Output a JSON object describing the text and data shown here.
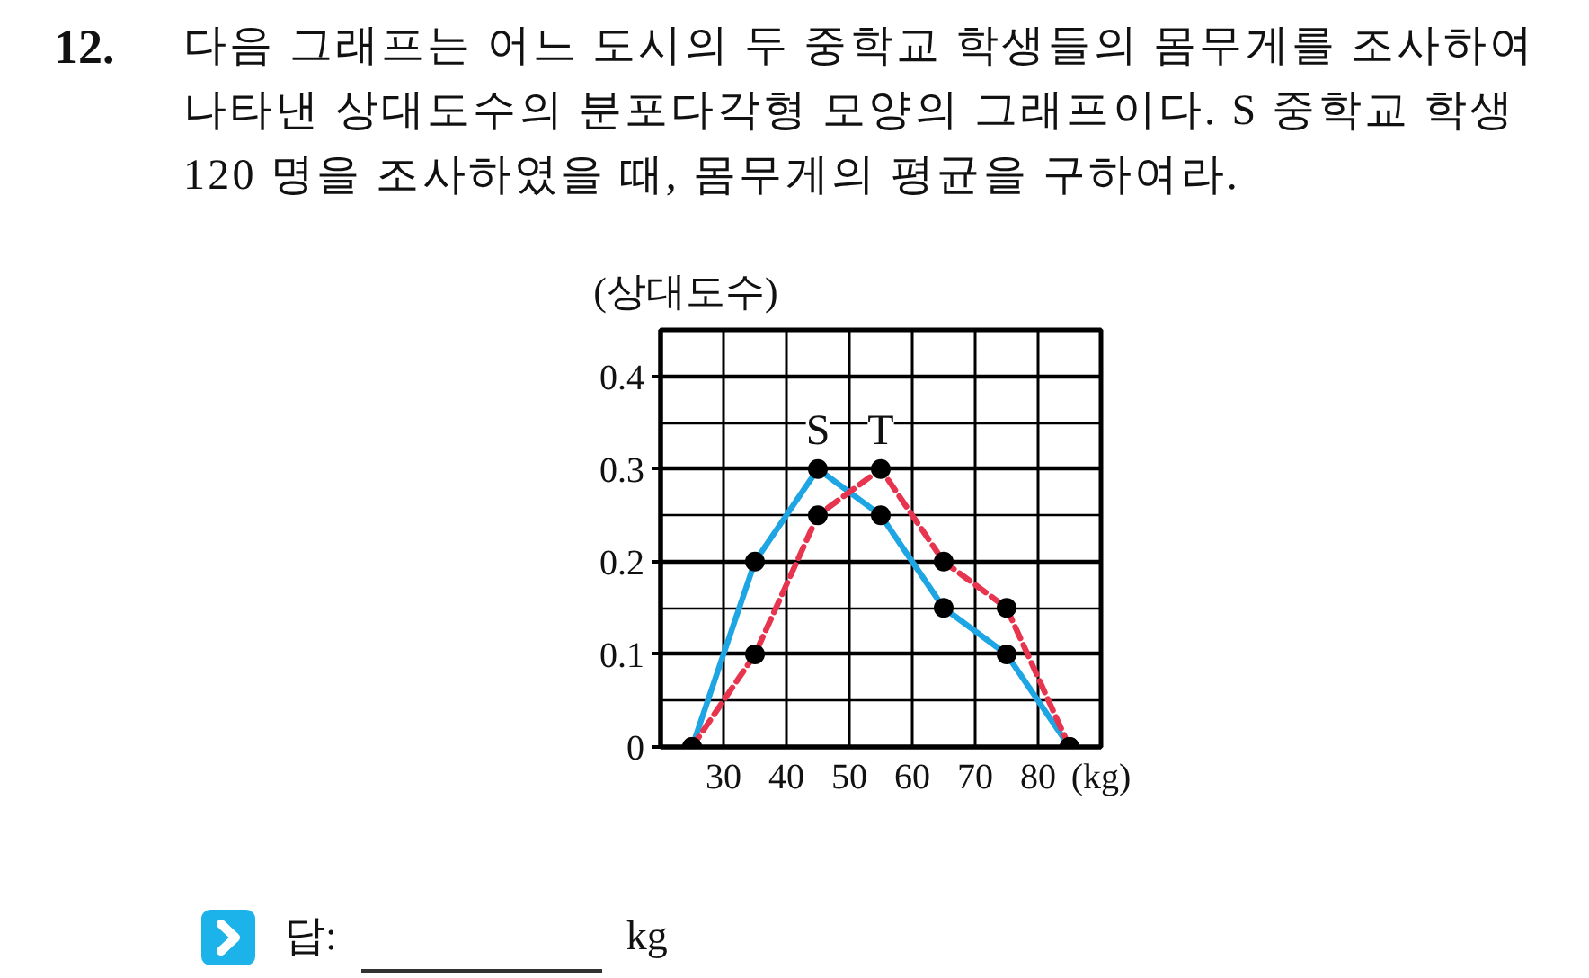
{
  "chart_data": {
    "type": "line",
    "title": "12.",
    "subtitle": "다음 그래프는 어느 도시의 두 중학교 학생들의 몸무게를 조사하여 나타낸 상대도수의 분포다각형 모양의 그래프이다. S 중학교 학생 120 명을 조사하였을 때, 몸무게의 평균을 구하여라.",
    "xlabel": "(kg)",
    "ylabel": "(상대도수)",
    "x": [
      25,
      35,
      45,
      55,
      65,
      75,
      85
    ],
    "series": [
      {
        "name": "S",
        "color": "#1ea5e3",
        "line_style": "solid",
        "values": [
          0,
          0.2,
          0.3,
          0.25,
          0.15,
          0.1,
          0
        ]
      },
      {
        "name": "T",
        "color": "#e8354f",
        "line_style": "dashed",
        "values": [
          0,
          0.1,
          0.25,
          0.3,
          0.2,
          0.15,
          0
        ]
      }
    ],
    "xlim": [
      20,
      90
    ],
    "xticks": [
      30,
      40,
      50,
      60,
      70,
      80
    ],
    "ylim": [
      0,
      0.45
    ],
    "yticks": [
      0,
      {
        "value": 0.05,
        "label": null
      },
      0.1,
      {
        "value": 0.15,
        "label": null
      },
      0.2,
      {
        "value": 0.25,
        "label": null
      },
      0.3,
      {
        "value": 0.35,
        "label": null
      },
      0.4
    ],
    "grid": true,
    "marker": "circle",
    "legend": false,
    "annotations": [
      "답:",
      "kg"
    ]
  }
}
